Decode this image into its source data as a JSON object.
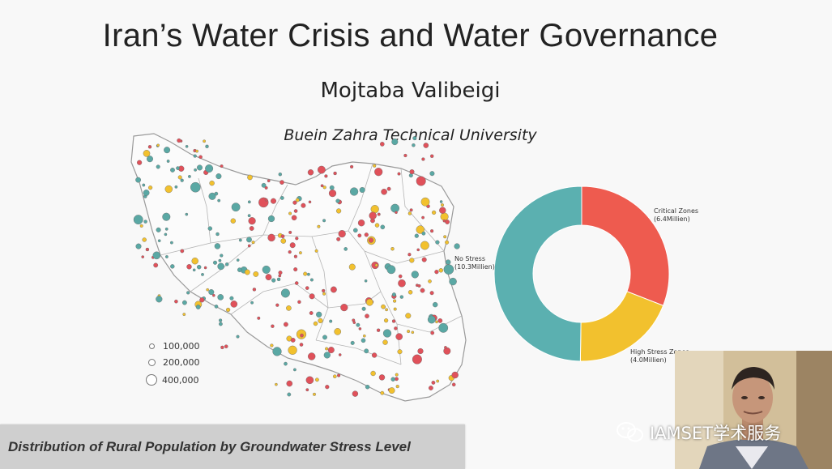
{
  "slide": {
    "title": "Iran’s Water Crisis and Water Governance",
    "author": "Mojtaba Valibeigi",
    "affiliation": "Buein Zahra Technical University",
    "caption": "Distribution  of  Rural Population  by  Groundwater  Stress  Level"
  },
  "map_legend": {
    "sizes": [
      "100,000",
      "200,000",
      "400,000"
    ]
  },
  "donut": {
    "segments": [
      {
        "label": "Critical Zones",
        "value_text": "(6.4Millien)",
        "value": 6.4,
        "color": "#ee5b4f"
      },
      {
        "label": "High Stress Zones",
        "value_text": "(4.0Millien)",
        "value": 4.0,
        "color": "#f2c12e"
      },
      {
        "label": "No Stress",
        "value_text": "(10.3Millien)",
        "value": 10.3,
        "color": "#5bb0b0"
      }
    ]
  },
  "colors": {
    "critical": "#e0515a",
    "high_stress": "#f2c12e",
    "no_stress": "#5aa8a4"
  },
  "watermark": {
    "text": "IAMSET学术服务",
    "icon": "wechat-icon"
  }
}
